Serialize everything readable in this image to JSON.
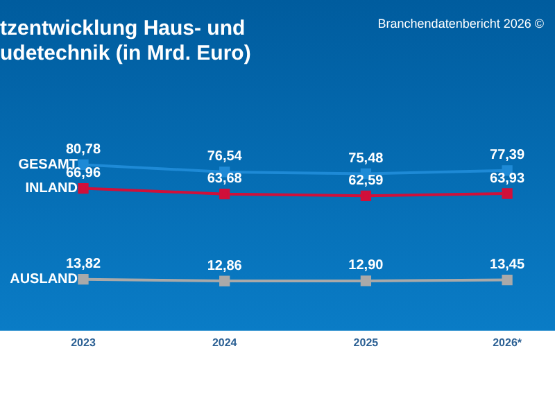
{
  "chart_data": {
    "type": "line",
    "title": "tzentwicklung Haus- und udetechnik (in Mrd. Euro)",
    "annotations": [
      "Branchendatenbericht 2026 ©"
    ],
    "categories": [
      "2023",
      "2024",
      "2025",
      "2026*"
    ],
    "series": [
      {
        "name": "GESAMT",
        "color": "#1e8ad6",
        "values": [
          80.78,
          76.54,
          75.48,
          77.39
        ],
        "value_labels": [
          "80,78",
          "76,54",
          "75,48",
          "77,39"
        ]
      },
      {
        "name": "INLAND",
        "color": "#d0103a",
        "values": [
          66.96,
          63.68,
          62.59,
          63.93
        ],
        "value_labels": [
          "66,96",
          "63,68",
          "62,59",
          "63,93"
        ]
      },
      {
        "name": "AUSLAND",
        "color": "#a9a9a9",
        "values": [
          13.82,
          12.86,
          12.9,
          13.45
        ],
        "value_labels": [
          "13,82",
          "12,86",
          "12,90",
          "13,45"
        ]
      }
    ],
    "marker": "square",
    "line_style": "solid",
    "grid": false,
    "legend": false
  }
}
